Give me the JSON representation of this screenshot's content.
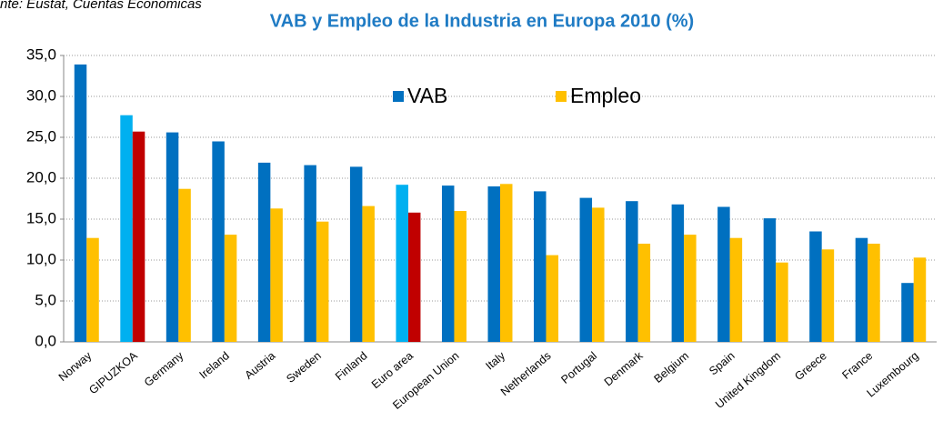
{
  "chart_data": {
    "type": "bar",
    "source": "nte: Eustat, Cuentas Económicas",
    "title": "VAB y Empleo de la Industria en Europa 2010 (%)",
    "categories": [
      "Norway",
      "GIPUZKOA",
      "Germany",
      "Ireland",
      "Austria",
      "Sweden",
      "Finland",
      "Euro area",
      "European Union",
      "Italy",
      "Netherlands",
      "Portugal",
      "Denmark",
      "Belgium",
      "Spain",
      "United Kingdom",
      "Greece",
      "France",
      "Luxembourg"
    ],
    "series": [
      {
        "name": "VAB",
        "color": "#0070c0",
        "point_colors": [
          "#0070c0",
          "#00b0f0",
          "#0070c0",
          "#0070c0",
          "#0070c0",
          "#0070c0",
          "#0070c0",
          "#00b0f0",
          "#0070c0",
          "#0070c0",
          "#0070c0",
          "#0070c0",
          "#0070c0",
          "#0070c0",
          "#0070c0",
          "#0070c0",
          "#0070c0",
          "#0070c0",
          "#0070c0"
        ],
        "values": [
          33.9,
          27.7,
          25.6,
          24.5,
          21.9,
          21.6,
          21.4,
          19.2,
          19.1,
          19.0,
          18.4,
          17.6,
          17.2,
          16.8,
          16.5,
          15.1,
          13.5,
          12.7,
          7.2
        ]
      },
      {
        "name": "Empleo",
        "color": "#ffc000",
        "point_colors": [
          "#ffc000",
          "#c00000",
          "#ffc000",
          "#ffc000",
          "#ffc000",
          "#ffc000",
          "#ffc000",
          "#c00000",
          "#ffc000",
          "#ffc000",
          "#ffc000",
          "#ffc000",
          "#ffc000",
          "#ffc000",
          "#ffc000",
          "#ffc000",
          "#ffc000",
          "#ffc000",
          "#ffc000"
        ],
        "values": [
          12.7,
          25.7,
          18.7,
          13.1,
          16.3,
          14.7,
          16.6,
          15.8,
          16.0,
          19.3,
          10.6,
          16.4,
          12.0,
          13.1,
          12.7,
          9.7,
          11.3,
          12.0,
          10.3
        ]
      }
    ],
    "ylim": [
      0,
      35
    ],
    "yticks": [
      {
        "value": 0,
        "label": "0,0"
      },
      {
        "value": 5,
        "label": "5,0"
      },
      {
        "value": 10,
        "label": "10,0"
      },
      {
        "value": 15,
        "label": "15,0"
      },
      {
        "value": 20,
        "label": "20,0"
      },
      {
        "value": 25,
        "label": "25,0"
      },
      {
        "value": 30,
        "label": "30,0"
      },
      {
        "value": 35,
        "label": "35,0"
      }
    ],
    "grid": true,
    "legend": "top"
  }
}
